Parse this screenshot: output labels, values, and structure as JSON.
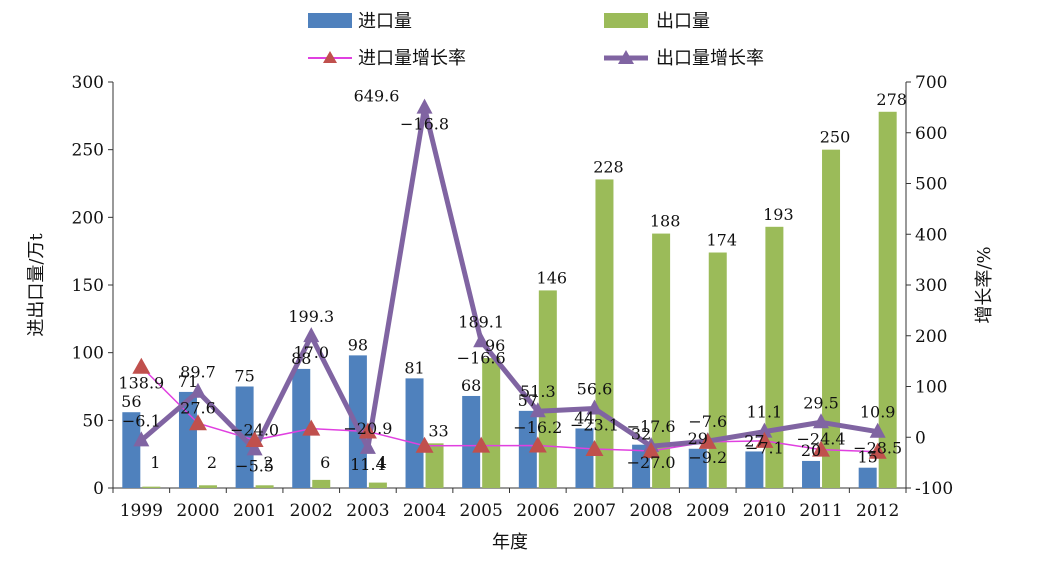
{
  "chart_data": {
    "type": "bar",
    "categories": [
      "1999",
      "2000",
      "2001",
      "2002",
      "2003",
      "2004",
      "2005",
      "2006",
      "2007",
      "2008",
      "2009",
      "2010",
      "2011",
      "2012"
    ],
    "xlabel": "年度",
    "ylabel": "进出口量/万t",
    "y2label": "增长率/%",
    "ylim": [
      0,
      300
    ],
    "y2lim": [
      -100,
      700
    ],
    "yticks": [
      "0",
      "50",
      "100",
      "150",
      "200",
      "250",
      "300"
    ],
    "y2ticks": [
      "-100",
      "0",
      "100",
      "200",
      "300",
      "400",
      "500",
      "600",
      "700"
    ],
    "series": [
      {
        "name": "进口量",
        "kind": "bar",
        "axis": "left",
        "color": "#4f81bd",
        "values": [
          56,
          71,
          75,
          88,
          98,
          81,
          68,
          57,
          44,
          32,
          29,
          27,
          20,
          15
        ],
        "labels": [
          "56",
          "71",
          "75",
          "88",
          "98",
          "81",
          "68",
          "57",
          "44",
          "32",
          "29",
          "27",
          "20",
          "15"
        ]
      },
      {
        "name": "出口量",
        "kind": "bar",
        "axis": "left",
        "color": "#9bbb59",
        "values": [
          1,
          2,
          2,
          6,
          4,
          33,
          96,
          146,
          228,
          188,
          174,
          193,
          250,
          278
        ],
        "labels": [
          "1",
          "2",
          "2",
          "6",
          "4",
          "33",
          "96",
          "146",
          "228",
          "188",
          "174",
          "193",
          "250",
          "278"
        ]
      },
      {
        "name": "进口量增长率",
        "kind": "line",
        "axis": "right",
        "color": "#e040e0",
        "marker_color": "#c0504d",
        "values": [
          138.9,
          27.6,
          -5.5,
          17.0,
          11.4,
          -16.8,
          -16.6,
          -16.2,
          -23.1,
          -27.0,
          -9.2,
          -7.1,
          -24.4,
          -28.5
        ],
        "labels": [
          "138.9",
          "27.6",
          "−5.5",
          "17.0",
          "11.4",
          "−16.8",
          "−16.6",
          "−16.2",
          "−23.1",
          "−27.0",
          "−9.2",
          "−7.1",
          "−24.4",
          "−28.5"
        ]
      },
      {
        "name": "出口量增长率",
        "kind": "line",
        "axis": "right",
        "color": "#8064a2",
        "values": [
          -6.1,
          89.7,
          -24.0,
          199.3,
          -20.9,
          649.6,
          189.1,
          51.3,
          56.6,
          -17.6,
          -7.6,
          11.1,
          29.5,
          10.9
        ],
        "labels": [
          "−6.1",
          "89.7",
          "−24.0",
          "199.3",
          "−20.9",
          "649.6",
          "189.1",
          "51.3",
          "56.6",
          "−17.6",
          "−7.6",
          "11.1",
          "29.5",
          "10.9"
        ]
      }
    ],
    "legend": {
      "position": "top",
      "items": [
        "进口量",
        "出口量",
        "进口量增长率",
        "出口量增长率"
      ]
    },
    "grid": false
  }
}
